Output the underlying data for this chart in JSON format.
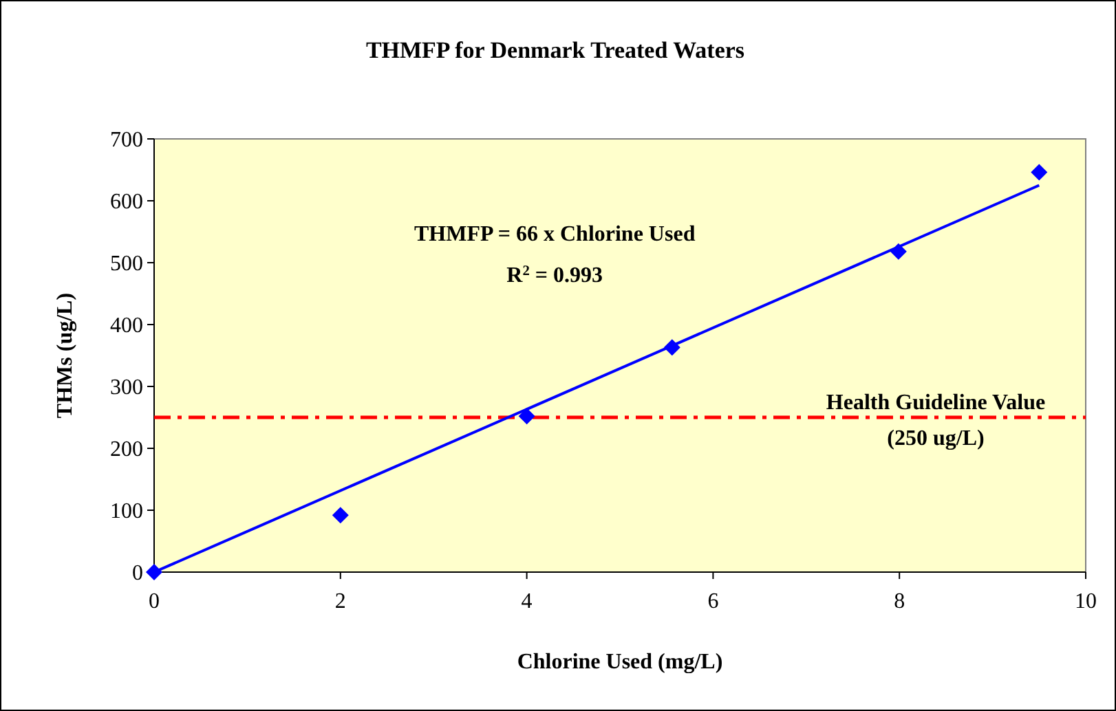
{
  "chart_data": {
    "type": "scatter",
    "title": "THMFP for Denmark Treated Waters",
    "xlabel": "Chlorine Used (mg/L)",
    "ylabel": "THMs (ug/L)",
    "xlim": [
      0,
      10
    ],
    "xticks": [
      0,
      2,
      4,
      6,
      8,
      10
    ],
    "ylim": [
      0,
      700
    ],
    "yticks": [
      0,
      100,
      200,
      300,
      400,
      500,
      600,
      700
    ],
    "grid": false,
    "series": [
      {
        "color": "#0000ff",
        "marker": "diamond",
        "x": [
          0,
          2,
          4,
          5.56,
          7.99,
          9.5
        ],
        "values": [
          0,
          92,
          252,
          363,
          518,
          646
        ]
      },
      {
        "type": "line",
        "color": "#0000ff",
        "marker": "none",
        "line_style": "solid",
        "x": [
          0,
          9.5
        ],
        "values": [
          0,
          625
        ]
      }
    ],
    "ref_lines": [
      {
        "axis": "y",
        "value": 250,
        "label": "Health Guideline Value (250 ug/L)",
        "color": "#ff0000",
        "line_style": "dashdot"
      }
    ],
    "annotations": [
      "THMFP = 66 x Chlorine Used",
      "R$^{2}$ = 0.993"
    ]
  }
}
